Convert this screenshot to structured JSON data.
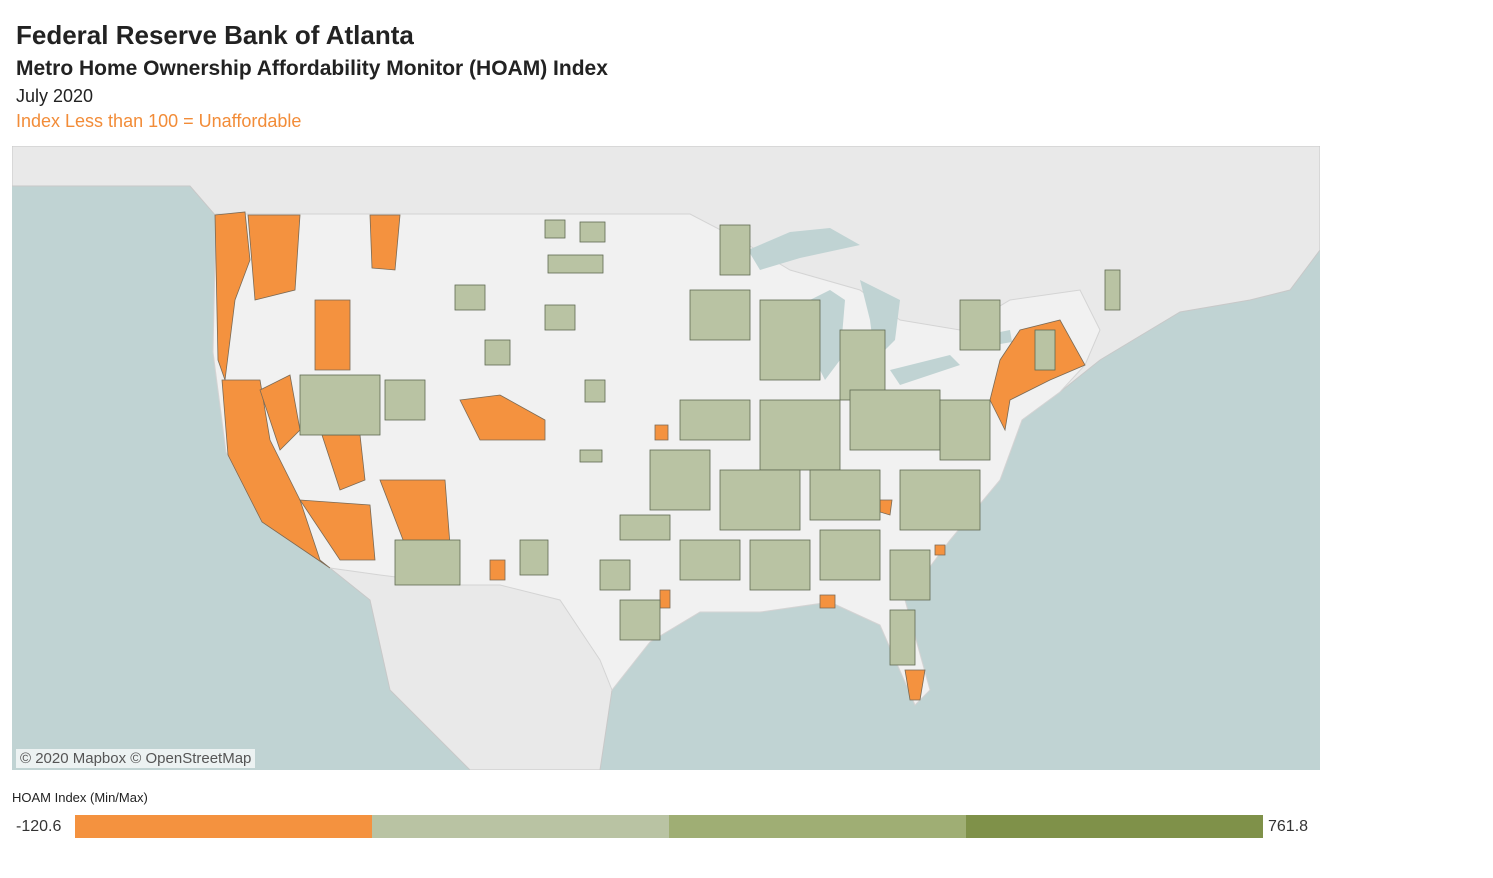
{
  "header": {
    "title": "Federal Reserve Bank of Atlanta",
    "subtitle": "Metro Home Ownership Affordability Monitor (HOAM) Index",
    "date": "July 2020",
    "note": "Index Less than 100 = Unaffordable"
  },
  "map": {
    "attribution": "© 2020 Mapbox © OpenStreetMap"
  },
  "legend": {
    "title": "HOAM Index (Min/Max)",
    "min": -120.6,
    "max": 761.8,
    "colors": [
      "#f4923f",
      "#b9c3a3",
      "#9fae74",
      "#7f9149"
    ]
  }
}
